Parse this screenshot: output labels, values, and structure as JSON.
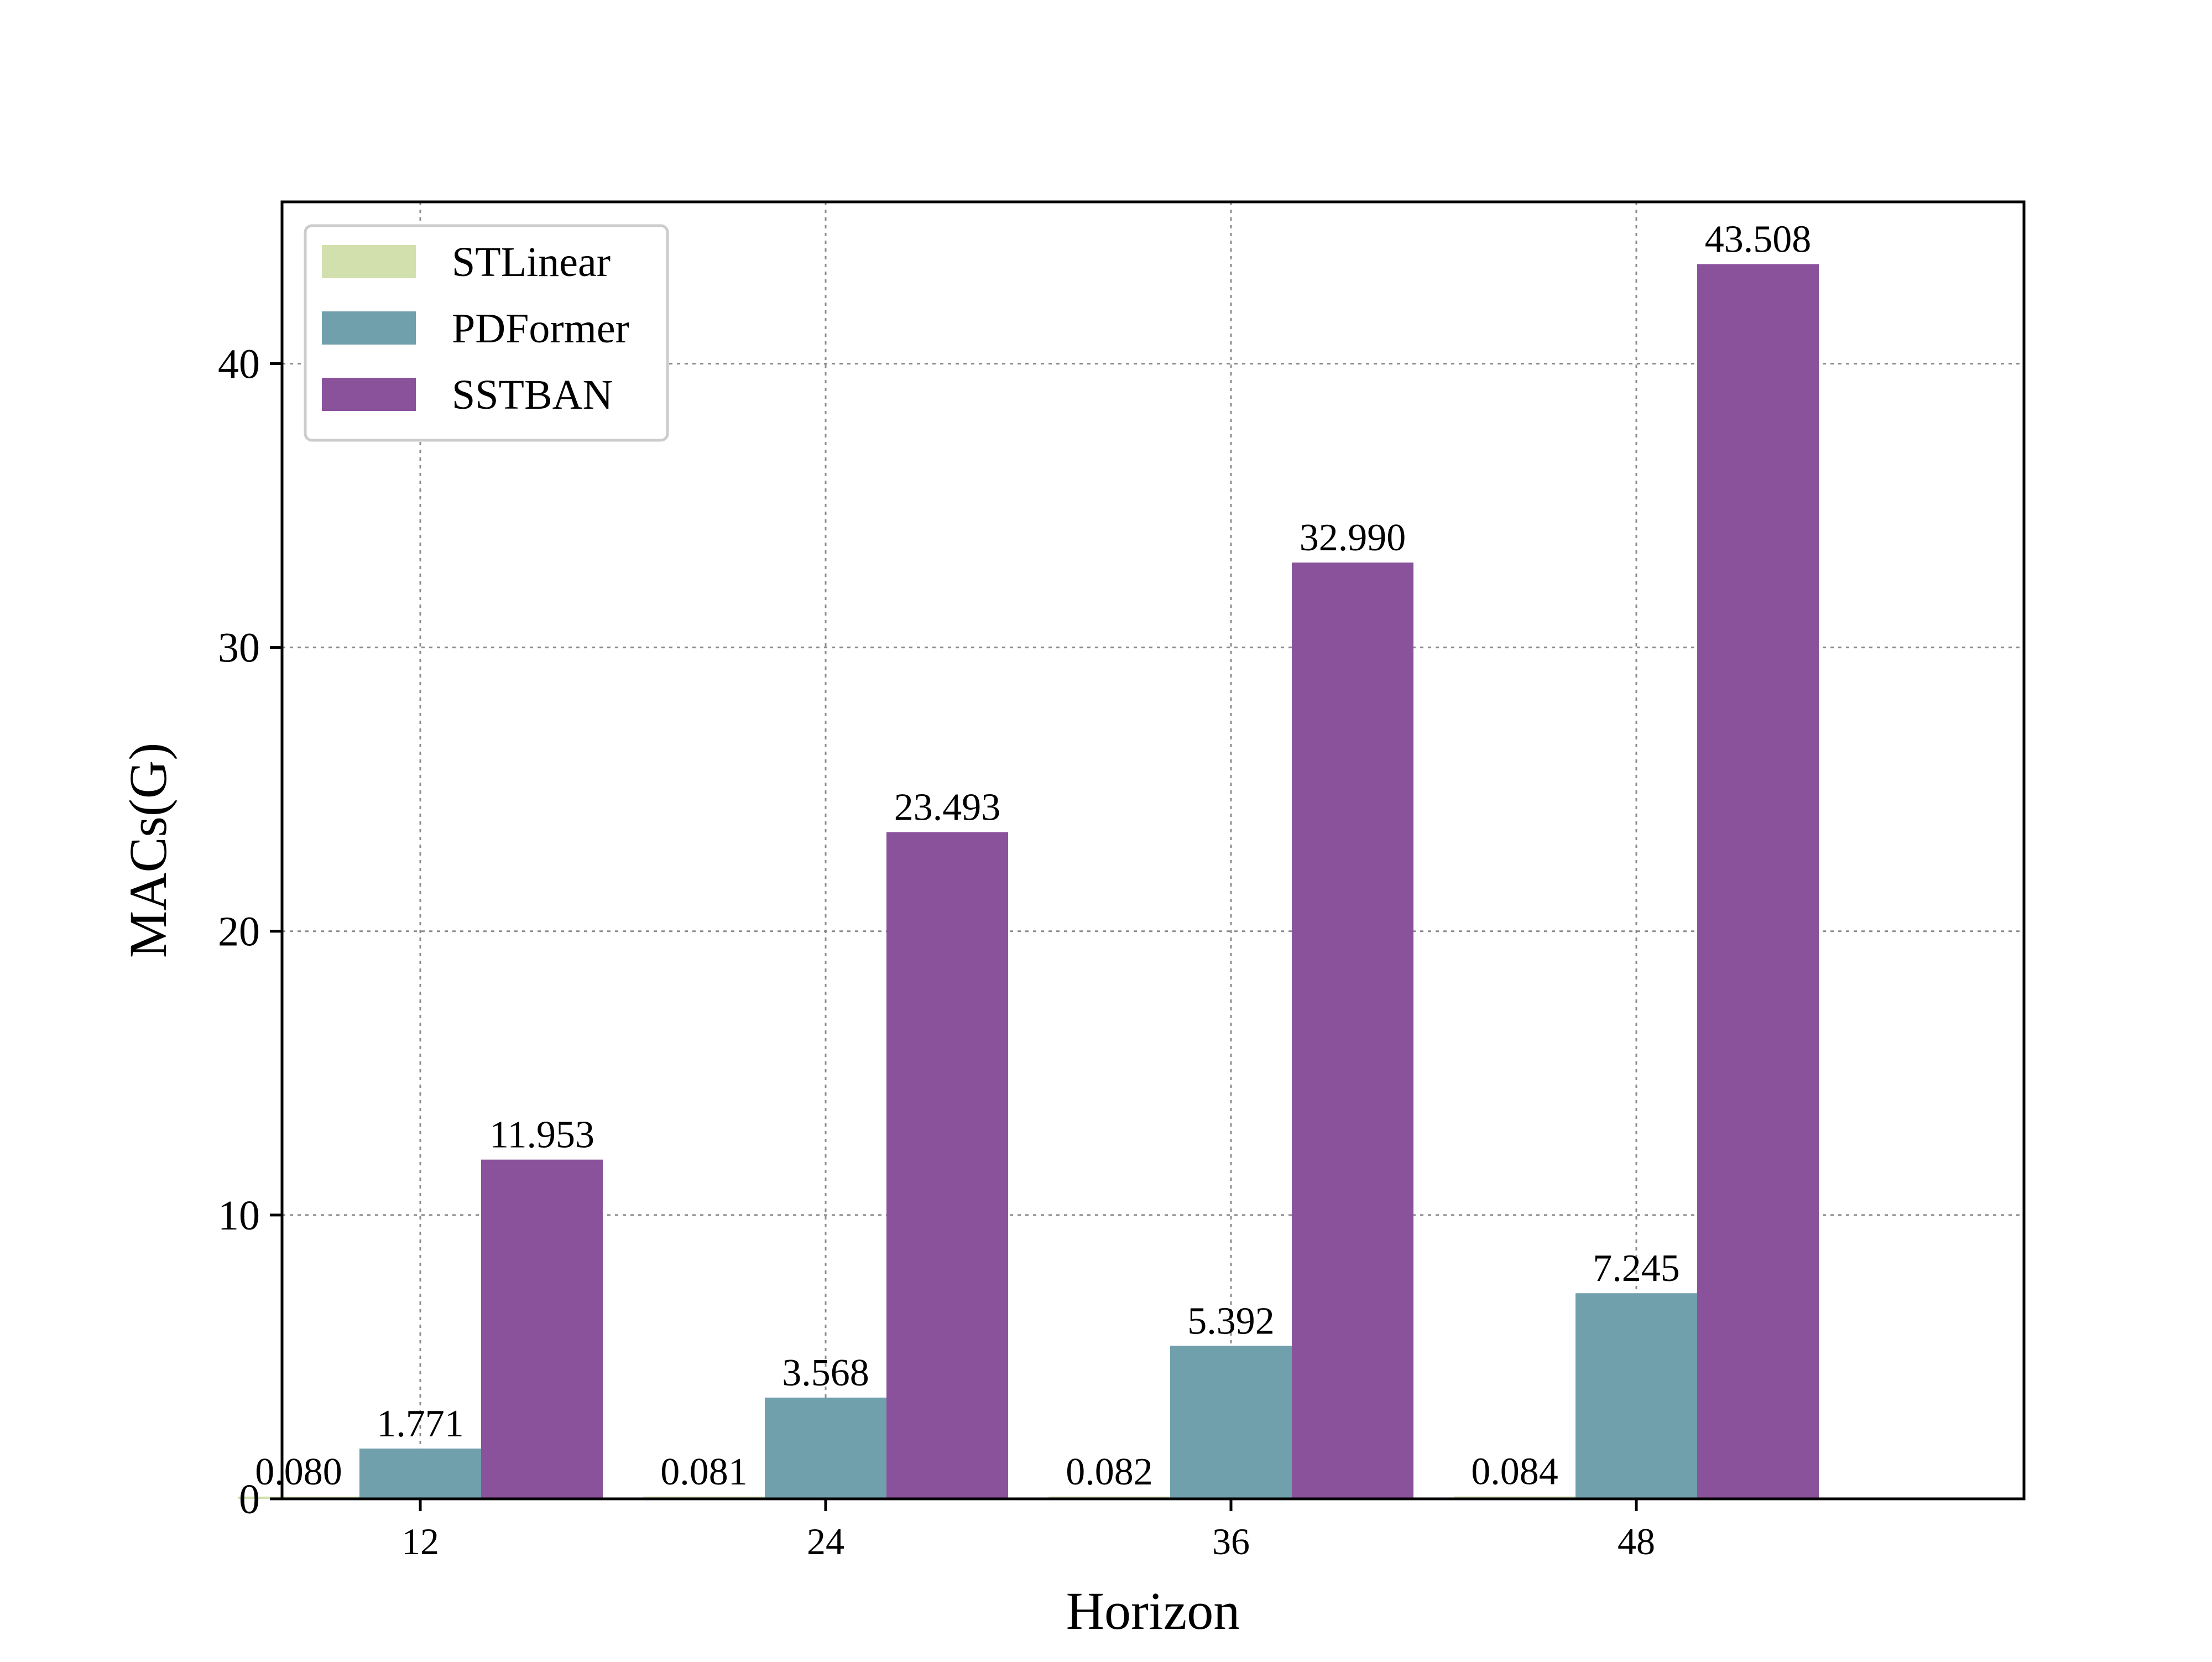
{
  "chart_data": {
    "type": "bar",
    "xlabel": "Horizon",
    "ylabel": "MACs(G)",
    "categories": [
      "12",
      "24",
      "36",
      "48"
    ],
    "ylim": [
      0,
      45.7
    ],
    "yticks": [
      0,
      10,
      20,
      30,
      40
    ],
    "grid": true,
    "legend_position": "top-left",
    "series": [
      {
        "name": "STLinear",
        "color": "#d2e0ad",
        "values": [
          0.08,
          0.081,
          0.082,
          0.084
        ],
        "labels": [
          "0.080",
          "0.081",
          "0.082",
          "0.084"
        ]
      },
      {
        "name": "PDFormer",
        "color": "#70a0ac",
        "values": [
          1.771,
          3.568,
          5.392,
          7.245
        ],
        "labels": [
          "1.771",
          "3.568",
          "5.392",
          "7.245"
        ]
      },
      {
        "name": "SSTBAN",
        "color": "#8b529c",
        "values": [
          11.953,
          23.493,
          32.99,
          43.508
        ],
        "labels": [
          "11.953",
          "23.493",
          "32.990",
          "43.508"
        ]
      }
    ]
  }
}
